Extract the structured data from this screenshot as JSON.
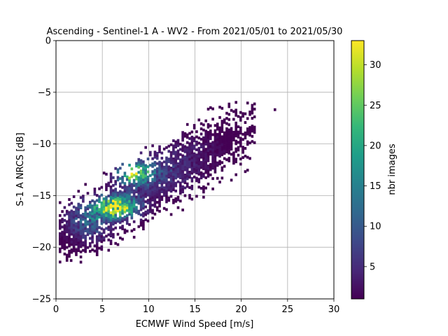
{
  "chart_data": {
    "type": "heatmap",
    "title": "Ascending - Sentinel-1 A - WV2 - From 2021/05/01 to 2021/05/30",
    "xlabel": "ECMWF Wind Speed [m/s]",
    "ylabel": "S-1 A NRCS [dB]",
    "xlim": [
      0,
      30
    ],
    "ylim": [
      -25,
      0
    ],
    "xticks": [
      "0",
      "5",
      "10",
      "15",
      "20",
      "25",
      "30"
    ],
    "yticks": [
      "0",
      "−5",
      "−10",
      "−15",
      "−20",
      "−25"
    ],
    "grid": true,
    "colorbar": {
      "label": "nbr images",
      "range": [
        1,
        33
      ],
      "ticks": [
        "5",
        "10",
        "15",
        "20",
        "25",
        "30"
      ],
      "colormap": [
        "#440154",
        "#482878",
        "#3e4989",
        "#31688e",
        "#26828e",
        "#1f9e89",
        "#35b779",
        "#6ece58",
        "#b5de2b",
        "#fde725"
      ]
    },
    "density": {
      "bin_width": [
        0.25,
        0.25
      ],
      "clusters": [
        {
          "wind_speed": 6.5,
          "nrcs": -16.2,
          "sx": 1.6,
          "sy": 0.75,
          "peak": 30
        },
        {
          "wind_speed": 8.3,
          "nrcs": -12.9,
          "sx": 1.3,
          "sy": 0.8,
          "peak": 22
        },
        {
          "wind_speed": 3.5,
          "nrcs": -17.5,
          "sx": 1.8,
          "sy": 1.4,
          "peak": 10
        },
        {
          "wind_speed": 11.0,
          "nrcs": -13.0,
          "sx": 3.0,
          "sy": 1.6,
          "peak": 6
        },
        {
          "wind_speed": 15.0,
          "nrcs": -10.5,
          "sx": 3.0,
          "sy": 1.5,
          "peak": 2
        }
      ],
      "trend": {
        "slope": 0.55,
        "intercept": -19.8,
        "spread": 2.6,
        "x_range": [
          0.3,
          21.5
        ]
      },
      "outliers": [
        {
          "wind_speed": 23.5,
          "nrcs": -6.8,
          "count": 1
        },
        {
          "wind_speed": 21.2,
          "nrcs": -8.5,
          "count": 1
        },
        {
          "wind_speed": 20.3,
          "nrcs": -7.2,
          "count": 1
        },
        {
          "wind_speed": 1.5,
          "nrcs": -21.4,
          "count": 1
        }
      ]
    }
  }
}
